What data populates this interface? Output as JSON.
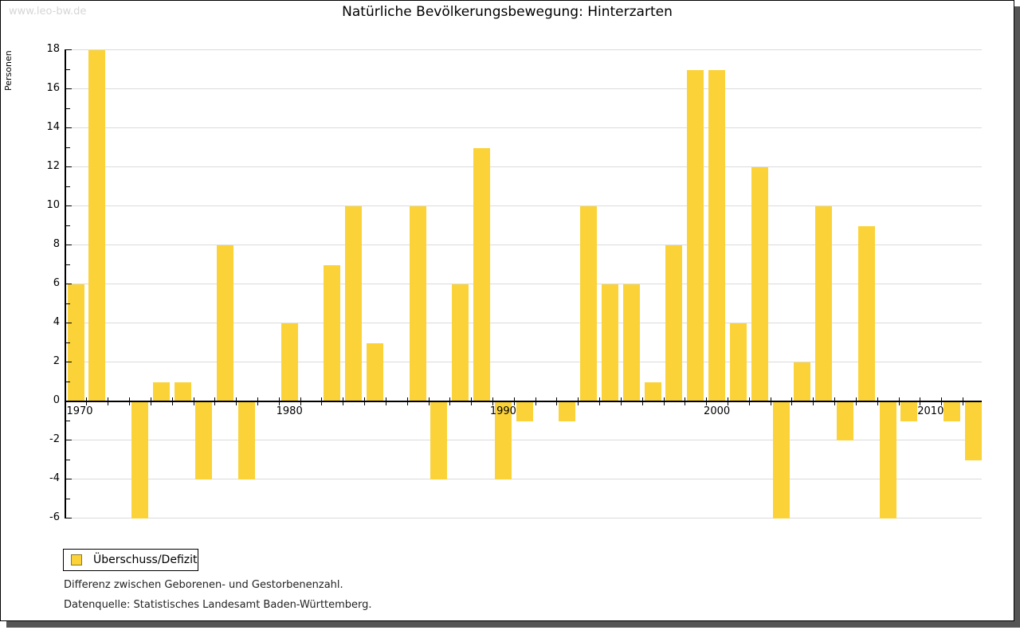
{
  "watermark": "www.leo-bw.de",
  "title": "Natürliche Bevölkerungsbewegung: Hinterzarten",
  "y_axis_label": "Personen",
  "legend": {
    "label": "Überschuss/Defizit"
  },
  "footnotes": [
    "Differenz zwischen Geborenen- und Gestorbenenzahl.",
    "Datenquelle: Statistisches Landesamt Baden-Württemberg."
  ],
  "colors": {
    "bar": "#FBD339",
    "grid": "#DBDBDB",
    "axis": "#000000",
    "frame_shadow": "#555555",
    "watermark": "#D6D6D6",
    "legend_swatch_border": "#8A7A22"
  },
  "chart_data": {
    "type": "bar",
    "title": "Natürliche Bevölkerungsbewegung: Hinterzarten",
    "xlabel": "",
    "ylabel": "Personen",
    "ylim": [
      -6,
      18
    ],
    "ytick_step": 2,
    "grid": true,
    "legend_position": "bottom-left",
    "series_name": "Überschuss/Defizit",
    "categories": [
      1970,
      1971,
      1972,
      1973,
      1974,
      1975,
      1976,
      1977,
      1978,
      1979,
      1980,
      1981,
      1982,
      1983,
      1984,
      1985,
      1986,
      1987,
      1988,
      1989,
      1990,
      1991,
      1992,
      1993,
      1994,
      1995,
      1996,
      1997,
      1998,
      1999,
      2000,
      2001,
      2002,
      2003,
      2004,
      2005,
      2006,
      2007,
      2008,
      2009,
      2010,
      2011,
      2012
    ],
    "values": [
      6,
      18,
      0,
      -6,
      1,
      1,
      -4,
      8,
      -4,
      0,
      4,
      0,
      7,
      10,
      3,
      0,
      10,
      -4,
      6,
      13,
      -4,
      -1,
      0,
      -1,
      10,
      6,
      6,
      1,
      8,
      17,
      17,
      4,
      12,
      -6,
      2,
      10,
      -2,
      9,
      -6,
      -1,
      0,
      -1,
      -3
    ],
    "xticks_labeled": [
      1970,
      1980,
      1990,
      2000,
      2010
    ]
  }
}
